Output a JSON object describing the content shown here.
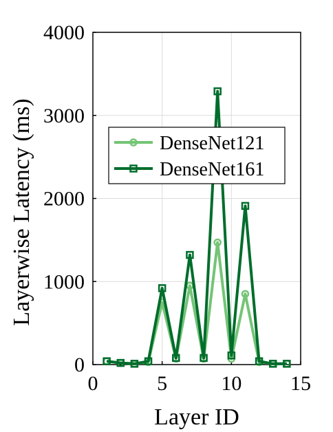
{
  "chart_data": {
    "type": "line",
    "xlabel": "Layer ID",
    "ylabel": "Layerwise Latency (ms)",
    "xlim": [
      0,
      15
    ],
    "ylim": [
      0,
      4000
    ],
    "xticks": [
      0,
      5,
      10,
      15
    ],
    "yticks": [
      0,
      1000,
      2000,
      3000,
      4000
    ],
    "xtick_labels": [
      "0",
      "5",
      "10",
      "15"
    ],
    "ytick_labels": [
      "0",
      "1000",
      "2000",
      "3000",
      "4000"
    ],
    "grid": true,
    "legend_position": "upper-center",
    "x": [
      1,
      2,
      3,
      4,
      5,
      6,
      7,
      8,
      9,
      10,
      11,
      12,
      13,
      14
    ],
    "series": [
      {
        "name": "DenseNet121",
        "color": "#74c476",
        "marker": "circle",
        "values": [
          40,
          20,
          10,
          30,
          750,
          70,
          950,
          70,
          1470,
          70,
          850,
          30,
          10,
          10
        ]
      },
      {
        "name": "DenseNet161",
        "color": "#006d2c",
        "marker": "square",
        "values": [
          40,
          20,
          10,
          40,
          920,
          80,
          1320,
          80,
          3290,
          110,
          1910,
          40,
          10,
          10
        ]
      }
    ]
  }
}
